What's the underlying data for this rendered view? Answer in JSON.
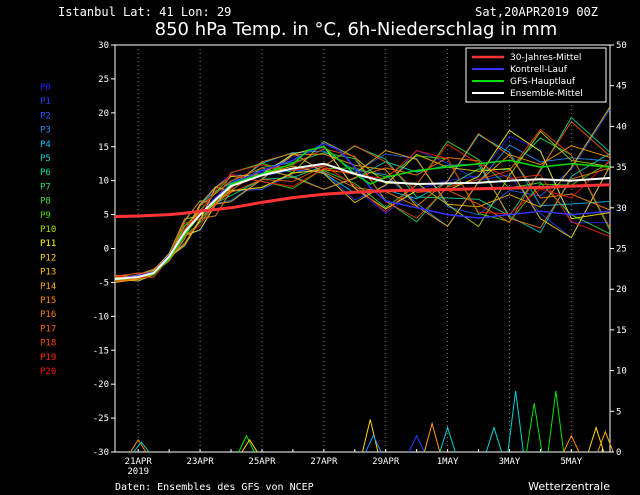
{
  "header": {
    "location": "Istanbul  Lat: 41 Lon: 29",
    "run": "Sat,20APR2019 00Z",
    "title": "850 hPa Temp. in °C, 6h-Niederschlag in mm"
  },
  "footer": {
    "source": "Daten: Ensembles des GFS von NCEP",
    "brand": "Wetterzentrale"
  },
  "colors": {
    "background": "#000000",
    "axis": "#ffffff",
    "climate": "#ff3333",
    "control": "#3333ff",
    "gfs": "#00dd00",
    "mean": "#ffffff"
  },
  "members": [
    {
      "label": "P0",
      "color": "#2020ff"
    },
    {
      "label": "P1",
      "color": "#2040ff"
    },
    {
      "label": "P2",
      "color": "#2060ff"
    },
    {
      "label": "P3",
      "color": "#1e90ff"
    },
    {
      "label": "P4",
      "color": "#00c0ff"
    },
    {
      "label": "P5",
      "color": "#00d0d0"
    },
    {
      "label": "P6",
      "color": "#00e0a0"
    },
    {
      "label": "P7",
      "color": "#20e060"
    },
    {
      "label": "P8",
      "color": "#40e040"
    },
    {
      "label": "P9",
      "color": "#40e000"
    },
    {
      "label": "P10",
      "color": "#b0e000"
    },
    {
      "label": "P11",
      "color": "#ffff00"
    },
    {
      "label": "P12",
      "color": "#ffd700"
    },
    {
      "label": "P13",
      "color": "#ffc000"
    },
    {
      "label": "P14",
      "color": "#ffa500"
    },
    {
      "label": "P15",
      "color": "#ff8c00"
    },
    {
      "label": "P16",
      "color": "#ff7f00"
    },
    {
      "label": "P17",
      "color": "#ff6400"
    },
    {
      "label": "P18",
      "color": "#ff4a00"
    },
    {
      "label": "P19",
      "color": "#ff2a00"
    },
    {
      "label": "P20",
      "color": "#ff1000"
    }
  ],
  "chart_data": {
    "type": "line",
    "title": "850 hPa Temp. in °C, 6h-Niederschlag in mm",
    "x_ticks": [
      "21APR",
      "23APR",
      "25APR",
      "27APR",
      "29APR",
      "1MAY",
      "3MAY",
      "5MAY"
    ],
    "x_tick_days": [
      1,
      3,
      5,
      7,
      9,
      11,
      13,
      15
    ],
    "x_sublabel": "2019",
    "x_range_days": [
      0.25,
      16.25
    ],
    "ylim_left": [
      -30,
      30
    ],
    "y_ticks_left": [
      30,
      25,
      20,
      15,
      10,
      5,
      0,
      -5,
      -10,
      -15,
      -20,
      -25,
      -30
    ],
    "ylim_right": [
      0,
      50
    ],
    "y_ticks_right": [
      50,
      45,
      40,
      35,
      30,
      25,
      20,
      15,
      10,
      5,
      0
    ],
    "grid": "vertical dashed",
    "legend_position": "top-right",
    "legend": [
      "30-Jahres-Mittel",
      "Kontrell-Lauf",
      "GFS-Hauptlauf",
      "Ensemble-Mittel"
    ],
    "series": [
      {
        "name": "30-Jahres-Mittel",
        "color": "#ff3333",
        "x": [
          0.25,
          1,
          2,
          2.5,
          3,
          4,
          5,
          6,
          7,
          8,
          9,
          10,
          11,
          12,
          13,
          14,
          15,
          16.25
        ],
        "y": [
          4.7,
          4.8,
          5.0,
          5.2,
          5.5,
          6.0,
          6.8,
          7.5,
          8.0,
          8.3,
          8.5,
          8.6,
          8.7,
          8.8,
          8.9,
          9.0,
          9.2,
          9.4
        ]
      },
      {
        "name": "Kontrell-Lauf",
        "color": "#3333ff",
        "x": [
          0.25,
          1,
          1.5,
          2,
          2.5,
          3,
          3.5,
          4,
          5,
          6,
          7,
          7.5,
          8,
          8.5,
          9,
          9.5,
          10,
          11,
          12,
          13,
          14,
          15,
          16.25
        ],
        "y": [
          -4.5,
          -4.0,
          -3.5,
          -1.0,
          2.5,
          5.0,
          7.5,
          9.5,
          11.5,
          13.0,
          15.5,
          14.5,
          12.0,
          9.0,
          7.0,
          6.5,
          6.0,
          5.0,
          4.5,
          5.0,
          5.5,
          5.0,
          5.5
        ]
      },
      {
        "name": "GFS-Hauptlauf",
        "color": "#00dd00",
        "x": [
          0.25,
          1,
          1.5,
          2,
          2.5,
          3,
          3.5,
          4,
          5,
          6,
          6.5,
          7,
          7.5,
          8,
          8.5,
          9,
          10,
          11,
          12,
          13,
          14,
          15,
          16.25
        ],
        "y": [
          -4.6,
          -4.2,
          -3.8,
          -1.5,
          2.0,
          5.0,
          7.0,
          9.5,
          11.0,
          12.5,
          14.5,
          15.0,
          13.0,
          11.0,
          9.5,
          10.5,
          11.5,
          12.0,
          12.5,
          13.0,
          12.0,
          12.5,
          12.0
        ]
      },
      {
        "name": "Ensemble-Mittel",
        "color": "#ffffff",
        "x": [
          0.25,
          1,
          1.5,
          2,
          2.5,
          3,
          3.5,
          4,
          5,
          6,
          7,
          8,
          9,
          10,
          11,
          12,
          13,
          14,
          15,
          16.25
        ],
        "y": [
          -4.5,
          -4.2,
          -3.6,
          -1.2,
          2.4,
          5.0,
          7.2,
          9.2,
          10.8,
          11.8,
          12.5,
          11.0,
          9.8,
          9.5,
          9.6,
          9.7,
          10.0,
          10.2,
          10.0,
          10.4
        ]
      }
    ],
    "precipitation_spikes_mm": [
      {
        "x": 1.0,
        "v": 1.5,
        "color": "#ff8c00"
      },
      {
        "x": 1.1,
        "v": 1.2,
        "color": "#00d0d0"
      },
      {
        "x": 4.5,
        "v": 2.0,
        "color": "#00e000"
      },
      {
        "x": 4.6,
        "v": 1.5,
        "color": "#ffd700"
      },
      {
        "x": 8.5,
        "v": 4.0,
        "color": "#ffd700"
      },
      {
        "x": 8.6,
        "v": 2.0,
        "color": "#1e90ff"
      },
      {
        "x": 10.0,
        "v": 2.0,
        "color": "#2040ff"
      },
      {
        "x": 10.5,
        "v": 3.5,
        "color": "#ffa500"
      },
      {
        "x": 11.0,
        "v": 3.0,
        "color": "#00d0d0"
      },
      {
        "x": 12.5,
        "v": 3.0,
        "color": "#00d0d0"
      },
      {
        "x": 13.2,
        "v": 7.5,
        "color": "#00d0d0"
      },
      {
        "x": 13.8,
        "v": 6.0,
        "color": "#00e000"
      },
      {
        "x": 14.5,
        "v": 7.5,
        "color": "#00e000"
      },
      {
        "x": 15.0,
        "v": 2.0,
        "color": "#ff8c00"
      },
      {
        "x": 15.8,
        "v": 3.0,
        "color": "#ffd700"
      },
      {
        "x": 16.1,
        "v": 2.5,
        "color": "#ffa500"
      }
    ]
  }
}
